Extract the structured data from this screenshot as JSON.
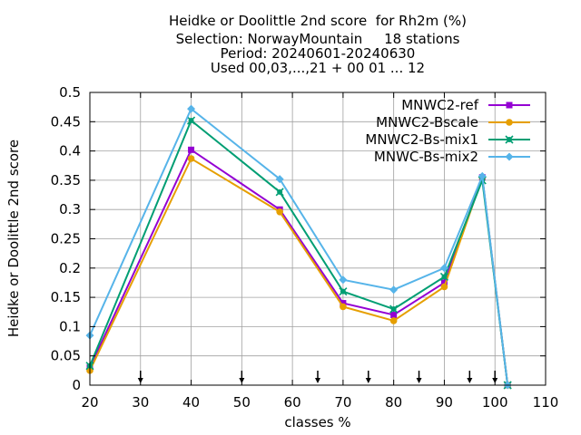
{
  "title_lines": [
    "Heidke or Doolittle 2nd score  for Rh2m (%)",
    "Selection: NorwayMountain     18 stations",
    "Period: 20240601-20240630",
    "Used 00,03,...,21 + 00 01 ... 12"
  ],
  "chart_data": {
    "type": "line",
    "xlabel": "classes %",
    "ylabel": "Heidke or Doolittle 2nd score",
    "xlim": [
      20,
      110
    ],
    "ylim": [
      0,
      0.5
    ],
    "xticks": [
      20,
      30,
      40,
      50,
      60,
      70,
      80,
      90,
      100,
      110
    ],
    "yticks": [
      0,
      0.05,
      0.1,
      0.15,
      0.2,
      0.25,
      0.3,
      0.35,
      0.4,
      0.45,
      0.5
    ],
    "grid": true,
    "legend_position": "top-right",
    "threshold_arrows_x": [
      30,
      50,
      65,
      75,
      85,
      95,
      100
    ],
    "x": [
      20,
      40,
      57.5,
      70,
      80,
      90,
      97.5,
      102.5
    ],
    "series": [
      {
        "name": "MNWC2-ref",
        "color": "#9400d3",
        "marker": "square",
        "values": [
          0.03,
          0.402,
          0.3,
          0.14,
          0.12,
          0.175,
          0.355,
          0.0
        ]
      },
      {
        "name": "MNWC2-Bscale",
        "color": "#e69f00",
        "marker": "circle",
        "values": [
          0.025,
          0.387,
          0.296,
          0.134,
          0.11,
          0.168,
          0.355,
          0.0
        ]
      },
      {
        "name": "MNWC2-Bs-mix1",
        "color": "#009e73",
        "marker": "cross",
        "values": [
          0.033,
          0.452,
          0.33,
          0.16,
          0.13,
          0.185,
          0.35,
          0.0
        ]
      },
      {
        "name": "MNWC-Bs-mix2",
        "color": "#56b4e9",
        "marker": "diamond",
        "values": [
          0.085,
          0.472,
          0.352,
          0.18,
          0.163,
          0.2,
          0.357,
          0.0
        ]
      }
    ]
  }
}
